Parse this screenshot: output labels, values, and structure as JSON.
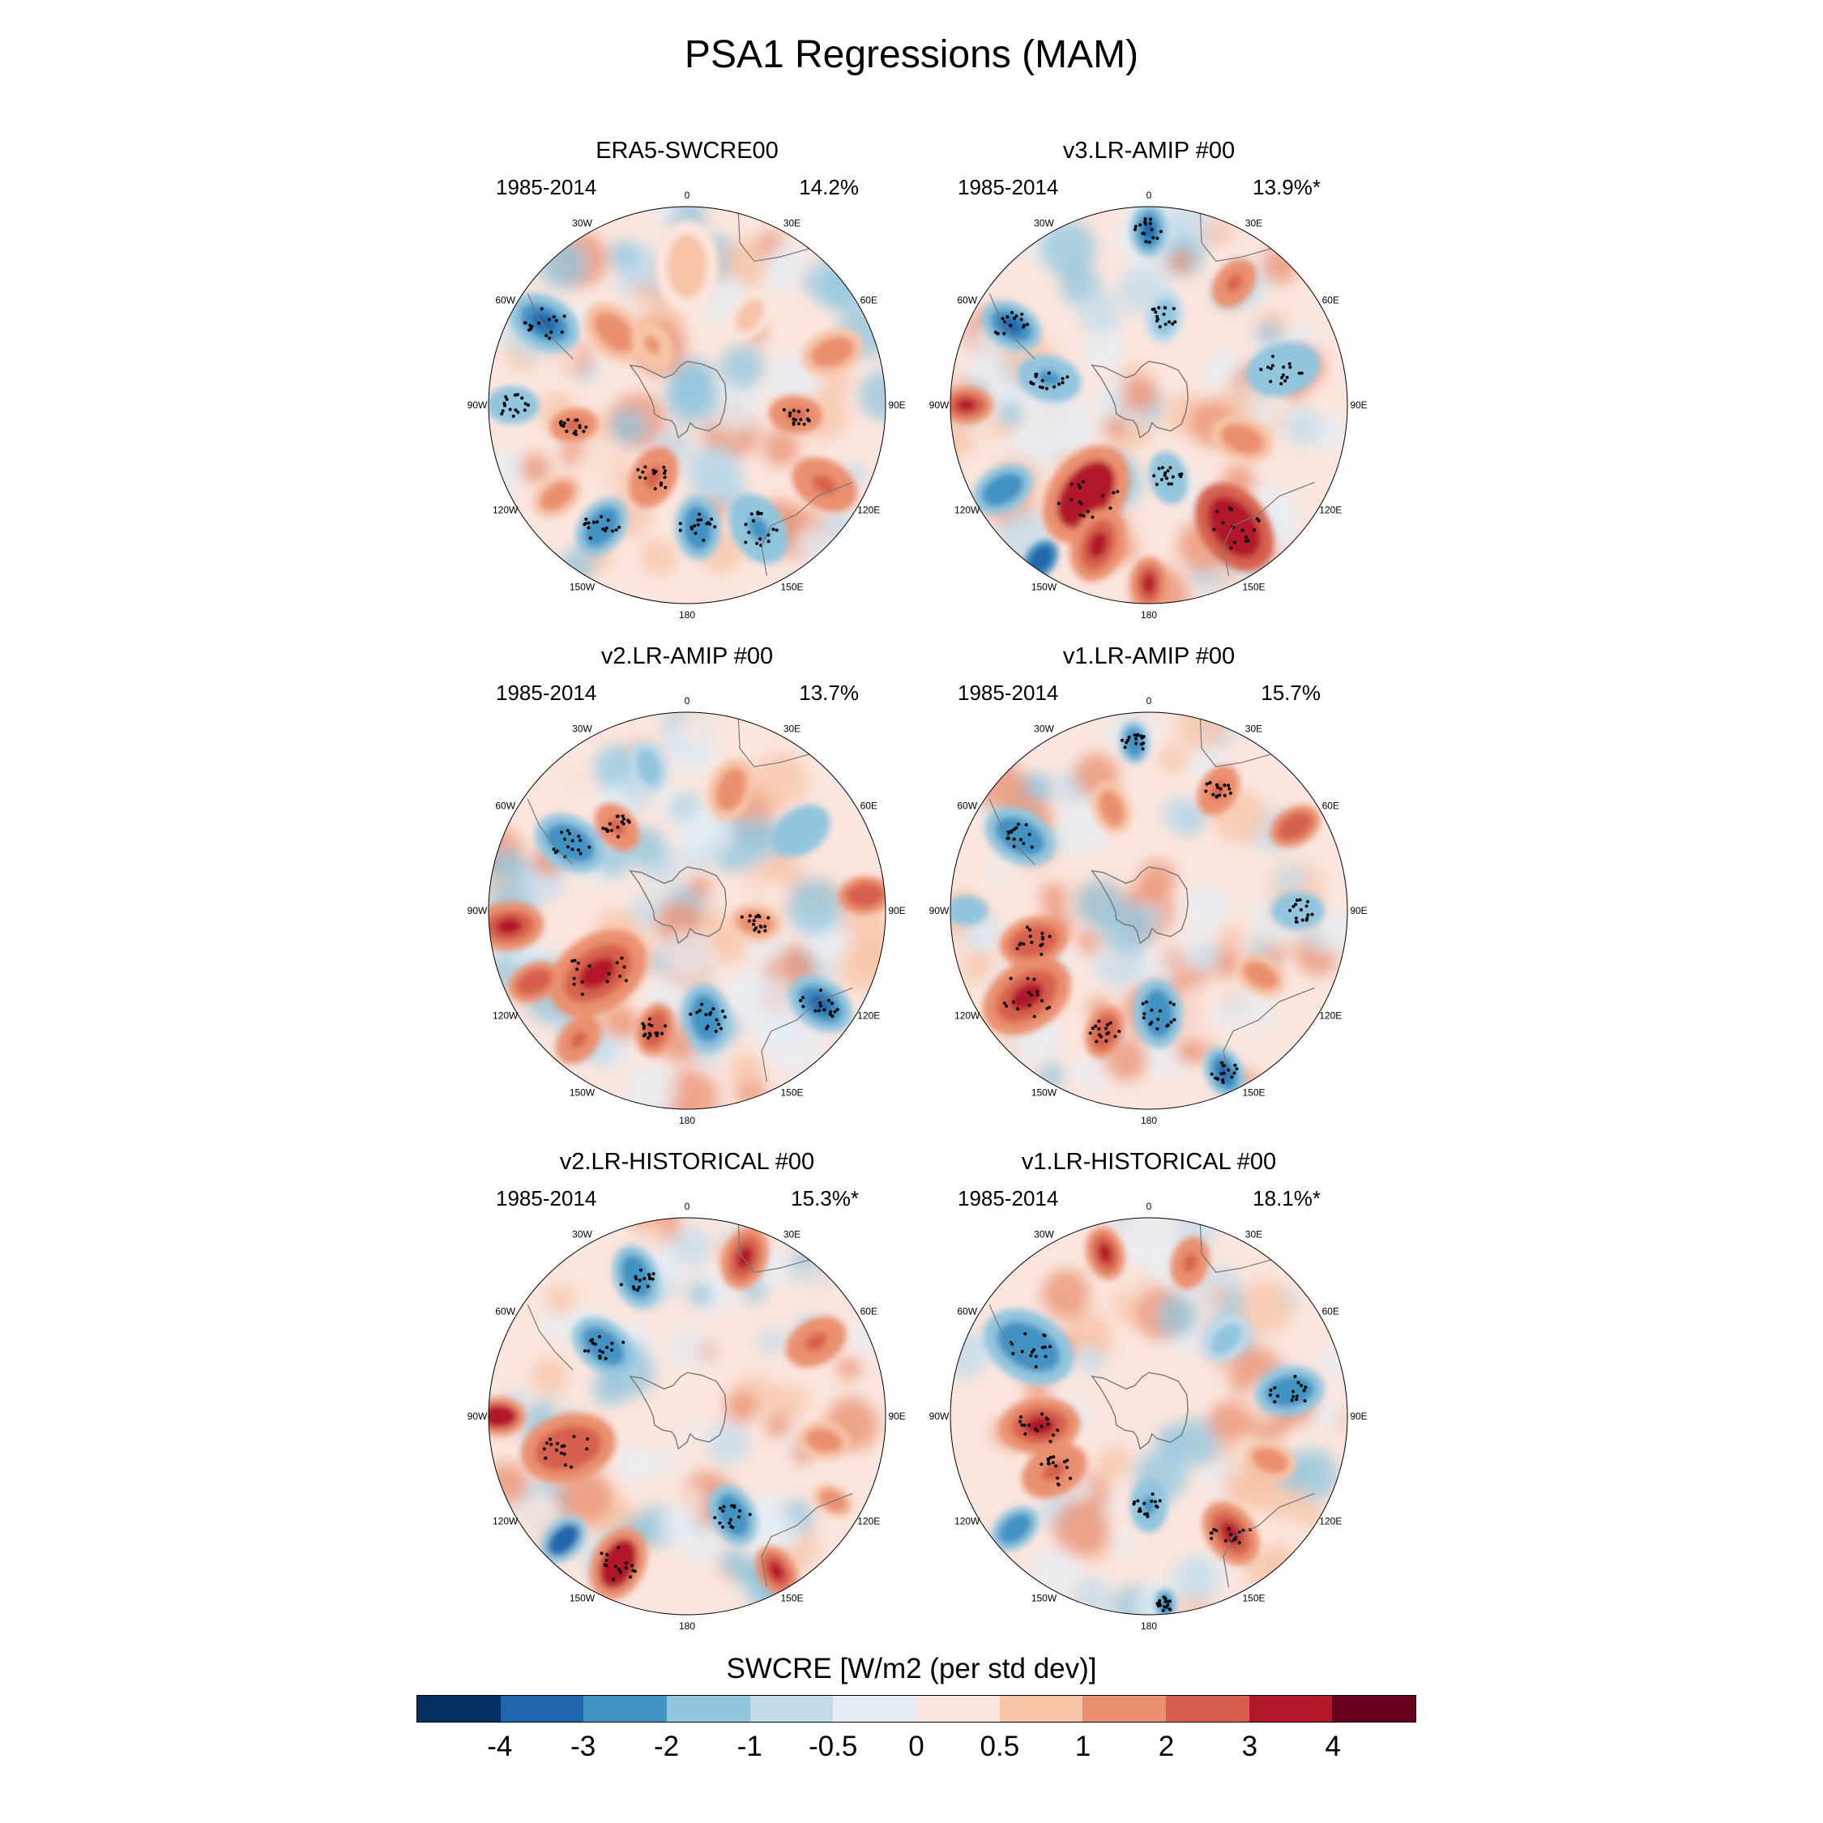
{
  "chart_data": {
    "type": "heatmap",
    "projection": "south-polar-stereographic",
    "title": "PSA1 Regressions (MAM)",
    "colorbar": {
      "label": "SWCRE [W/m2 (per std dev)]",
      "levels": [
        "-4",
        "-3",
        "-2",
        "-1",
        "-0.5",
        "0",
        "0.5",
        "1",
        "2",
        "3",
        "4"
      ],
      "colors": [
        "#053061",
        "#2166ac",
        "#4393c3",
        "#92c5de",
        "#c3dcec",
        "#e6eef5",
        "#fbe6de",
        "#f7c4a8",
        "#ea9070",
        "#d6604d",
        "#b2182b",
        "#67001f"
      ]
    },
    "longitude_labels": [
      "0",
      "30E",
      "60E",
      "90E",
      "120E",
      "150E",
      "180",
      "150W",
      "120W",
      "90W",
      "60W",
      "30W"
    ],
    "panels": [
      {
        "title": "ERA5-SWCRE00",
        "period": "1985-2014",
        "variance": "14.2%",
        "features": [
          {
            "lon": 300,
            "r": 0.83,
            "sr": 0.14,
            "v": -3.2,
            "sig": true
          },
          {
            "lon": 270,
            "r": 0.88,
            "sr": 0.1,
            "v": -2.0,
            "sig": true
          },
          {
            "lon": 260,
            "r": 0.58,
            "sr": 0.09,
            "v": 2.2,
            "sig": true
          },
          {
            "lon": 315,
            "r": 0.52,
            "sr": 0.13,
            "v": 1.2,
            "sig": false
          },
          {
            "lon": 0,
            "r": 0.7,
            "sr": 0.17,
            "v": 0.8,
            "sig": false
          },
          {
            "lon": 35,
            "r": 0.55,
            "sr": 0.1,
            "v": 0.9,
            "sig": false
          },
          {
            "lon": 70,
            "r": 0.78,
            "sr": 0.12,
            "v": 1.2,
            "sig": false
          },
          {
            "lon": 95,
            "r": 0.55,
            "sr": 0.1,
            "v": 2.0,
            "sig": true
          },
          {
            "lon": 120,
            "r": 0.8,
            "sr": 0.13,
            "v": 2.2,
            "sig": false
          },
          {
            "lon": 150,
            "r": 0.72,
            "sr": 0.14,
            "v": -2.2,
            "sig": true
          },
          {
            "lon": 175,
            "r": 0.62,
            "sr": 0.12,
            "v": -2.6,
            "sig": true
          },
          {
            "lon": 205,
            "r": 0.4,
            "sr": 0.12,
            "v": 2.0,
            "sig": true
          },
          {
            "lon": 215,
            "r": 0.75,
            "sr": 0.12,
            "v": -2.4,
            "sig": true
          },
          {
            "lon": 235,
            "r": 0.8,
            "sr": 0.1,
            "v": 1.8,
            "sig": false
          },
          {
            "lon": 330,
            "r": 0.35,
            "sr": 0.1,
            "v": 1.0,
            "sig": false
          }
        ]
      },
      {
        "title": "v3.LR-AMIP  #00",
        "period": "1985-2014",
        "variance": "13.9%*",
        "features": [
          {
            "lon": 0,
            "r": 0.88,
            "sr": 0.1,
            "v": -3.5,
            "sig": true
          },
          {
            "lon": 300,
            "r": 0.8,
            "sr": 0.12,
            "v": -3.4,
            "sig": true
          },
          {
            "lon": 270,
            "r": 0.92,
            "sr": 0.1,
            "v": 3.2,
            "sig": false
          },
          {
            "lon": 285,
            "r": 0.52,
            "sr": 0.12,
            "v": -2.2,
            "sig": true
          },
          {
            "lon": 215,
            "r": 0.55,
            "sr": 0.2,
            "v": 3.6,
            "sig": true
          },
          {
            "lon": 200,
            "r": 0.75,
            "sr": 0.14,
            "v": 3.0,
            "sig": false
          },
          {
            "lon": 180,
            "r": 0.9,
            "sr": 0.1,
            "v": 3.2,
            "sig": false
          },
          {
            "lon": 145,
            "r": 0.75,
            "sr": 0.18,
            "v": 3.8,
            "sig": true
          },
          {
            "lon": 240,
            "r": 0.85,
            "sr": 0.12,
            "v": -3.0,
            "sig": false
          },
          {
            "lon": 215,
            "r": 0.95,
            "sr": 0.08,
            "v": -3.8,
            "sig": false
          },
          {
            "lon": 75,
            "r": 0.7,
            "sr": 0.14,
            "v": -2.0,
            "sig": true
          },
          {
            "lon": 35,
            "r": 0.75,
            "sr": 0.1,
            "v": 2.0,
            "sig": false
          },
          {
            "lon": 10,
            "r": 0.45,
            "sr": 0.1,
            "v": -1.5,
            "sig": true
          },
          {
            "lon": 165,
            "r": 0.38,
            "sr": 0.1,
            "v": -2.0,
            "sig": true
          },
          {
            "lon": 110,
            "r": 0.5,
            "sr": 0.12,
            "v": 1.2,
            "sig": false
          }
        ]
      },
      {
        "title": "v2.LR-AMIP  #00",
        "period": "1985-2014",
        "variance": "13.7%",
        "features": [
          {
            "lon": 235,
            "r": 0.55,
            "sr": 0.2,
            "v": 3.2,
            "sig": true
          },
          {
            "lon": 265,
            "r": 0.9,
            "sr": 0.13,
            "v": 3.0,
            "sig": false
          },
          {
            "lon": 245,
            "r": 0.85,
            "sr": 0.1,
            "v": 2.6,
            "sig": false
          },
          {
            "lon": 300,
            "r": 0.68,
            "sr": 0.14,
            "v": -2.8,
            "sig": true
          },
          {
            "lon": 320,
            "r": 0.55,
            "sr": 0.1,
            "v": 2.2,
            "sig": true
          },
          {
            "lon": 170,
            "r": 0.55,
            "sr": 0.13,
            "v": -2.6,
            "sig": true
          },
          {
            "lon": 125,
            "r": 0.82,
            "sr": 0.13,
            "v": -3.2,
            "sig": true
          },
          {
            "lon": 195,
            "r": 0.62,
            "sr": 0.1,
            "v": 2.8,
            "sig": true
          },
          {
            "lon": 220,
            "r": 0.85,
            "sr": 0.1,
            "v": 2.2,
            "sig": false
          },
          {
            "lon": 85,
            "r": 0.9,
            "sr": 0.1,
            "v": 2.6,
            "sig": false
          },
          {
            "lon": 55,
            "r": 0.7,
            "sr": 0.12,
            "v": -2.0,
            "sig": false
          },
          {
            "lon": 20,
            "r": 0.65,
            "sr": 0.12,
            "v": 1.5,
            "sig": false
          },
          {
            "lon": 345,
            "r": 0.75,
            "sr": 0.1,
            "v": -1.2,
            "sig": false
          },
          {
            "lon": 100,
            "r": 0.35,
            "sr": 0.1,
            "v": 1.2,
            "sig": true
          }
        ]
      },
      {
        "title": "v1.LR-AMIP  #00",
        "period": "1985-2014",
        "variance": "15.7%",
        "features": [
          {
            "lon": 235,
            "r": 0.75,
            "sr": 0.18,
            "v": 3.4,
            "sig": true
          },
          {
            "lon": 255,
            "r": 0.6,
            "sr": 0.13,
            "v": 2.6,
            "sig": true
          },
          {
            "lon": 175,
            "r": 0.52,
            "sr": 0.13,
            "v": -2.8,
            "sig": true
          },
          {
            "lon": 200,
            "r": 0.65,
            "sr": 0.1,
            "v": 2.8,
            "sig": true
          },
          {
            "lon": 155,
            "r": 0.9,
            "sr": 0.1,
            "v": -3.4,
            "sig": true
          },
          {
            "lon": 300,
            "r": 0.75,
            "sr": 0.14,
            "v": -2.6,
            "sig": true
          },
          {
            "lon": 355,
            "r": 0.85,
            "sr": 0.08,
            "v": -2.8,
            "sig": true
          },
          {
            "lon": 340,
            "r": 0.55,
            "sr": 0.1,
            "v": 1.8,
            "sig": false
          },
          {
            "lon": 30,
            "r": 0.7,
            "sr": 0.1,
            "v": 2.2,
            "sig": true
          },
          {
            "lon": 60,
            "r": 0.85,
            "sr": 0.1,
            "v": 2.4,
            "sig": false
          },
          {
            "lon": 90,
            "r": 0.75,
            "sr": 0.1,
            "v": -2.0,
            "sig": true
          },
          {
            "lon": 120,
            "r": 0.65,
            "sr": 0.1,
            "v": 1.5,
            "sig": false
          },
          {
            "lon": 270,
            "r": 0.92,
            "sr": 0.08,
            "v": -2.0,
            "sig": false
          }
        ]
      },
      {
        "title": "v2.LR-HISTORICAL  #00",
        "period": "1985-2014",
        "variance": "15.3%*",
        "features": [
          {
            "lon": 255,
            "r": 0.62,
            "sr": 0.18,
            "v": 2.6,
            "sig": true
          },
          {
            "lon": 270,
            "r": 0.95,
            "sr": 0.1,
            "v": 3.6,
            "sig": false
          },
          {
            "lon": 205,
            "r": 0.82,
            "sr": 0.14,
            "v": 3.6,
            "sig": true
          },
          {
            "lon": 225,
            "r": 0.88,
            "sr": 0.1,
            "v": -3.6,
            "sig": false
          },
          {
            "lon": 150,
            "r": 0.9,
            "sr": 0.1,
            "v": 3.2,
            "sig": false
          },
          {
            "lon": 155,
            "r": 0.55,
            "sr": 0.12,
            "v": -2.4,
            "sig": true
          },
          {
            "lon": 20,
            "r": 0.85,
            "sr": 0.12,
            "v": 3.4,
            "sig": false
          },
          {
            "lon": 340,
            "r": 0.75,
            "sr": 0.12,
            "v": -3.0,
            "sig": true
          },
          {
            "lon": 310,
            "r": 0.55,
            "sr": 0.13,
            "v": -2.4,
            "sig": true
          },
          {
            "lon": 60,
            "r": 0.75,
            "sr": 0.12,
            "v": 2.0,
            "sig": false
          },
          {
            "lon": 100,
            "r": 0.7,
            "sr": 0.1,
            "v": 1.8,
            "sig": false
          },
          {
            "lon": 120,
            "r": 0.85,
            "sr": 0.08,
            "v": 1.8,
            "sig": false
          }
        ]
      },
      {
        "title": "v1.LR-HISTORICAL  #00",
        "period": "1985-2014",
        "variance": "18.1%*",
        "features": [
          {
            "lon": 300,
            "r": 0.7,
            "sr": 0.18,
            "v": -2.8,
            "sig": true
          },
          {
            "lon": 265,
            "r": 0.55,
            "sr": 0.15,
            "v": 3.0,
            "sig": true
          },
          {
            "lon": 240,
            "r": 0.55,
            "sr": 0.13,
            "v": 2.2,
            "sig": true
          },
          {
            "lon": 145,
            "r": 0.72,
            "sr": 0.13,
            "v": 3.2,
            "sig": true
          },
          {
            "lon": 175,
            "r": 0.95,
            "sr": 0.06,
            "v": -3.0,
            "sig": true
          },
          {
            "lon": 180,
            "r": 0.45,
            "sr": 0.1,
            "v": -2.2,
            "sig": true
          },
          {
            "lon": 230,
            "r": 0.88,
            "sr": 0.1,
            "v": -3.0,
            "sig": false
          },
          {
            "lon": 345,
            "r": 0.85,
            "sr": 0.1,
            "v": 3.0,
            "sig": false
          },
          {
            "lon": 15,
            "r": 0.8,
            "sr": 0.1,
            "v": 2.0,
            "sig": false
          },
          {
            "lon": 80,
            "r": 0.72,
            "sr": 0.13,
            "v": -2.8,
            "sig": true
          },
          {
            "lon": 110,
            "r": 0.65,
            "sr": 0.1,
            "v": 1.2,
            "sig": false
          },
          {
            "lon": 45,
            "r": 0.55,
            "sr": 0.1,
            "v": -1.2,
            "sig": false
          }
        ]
      }
    ]
  }
}
